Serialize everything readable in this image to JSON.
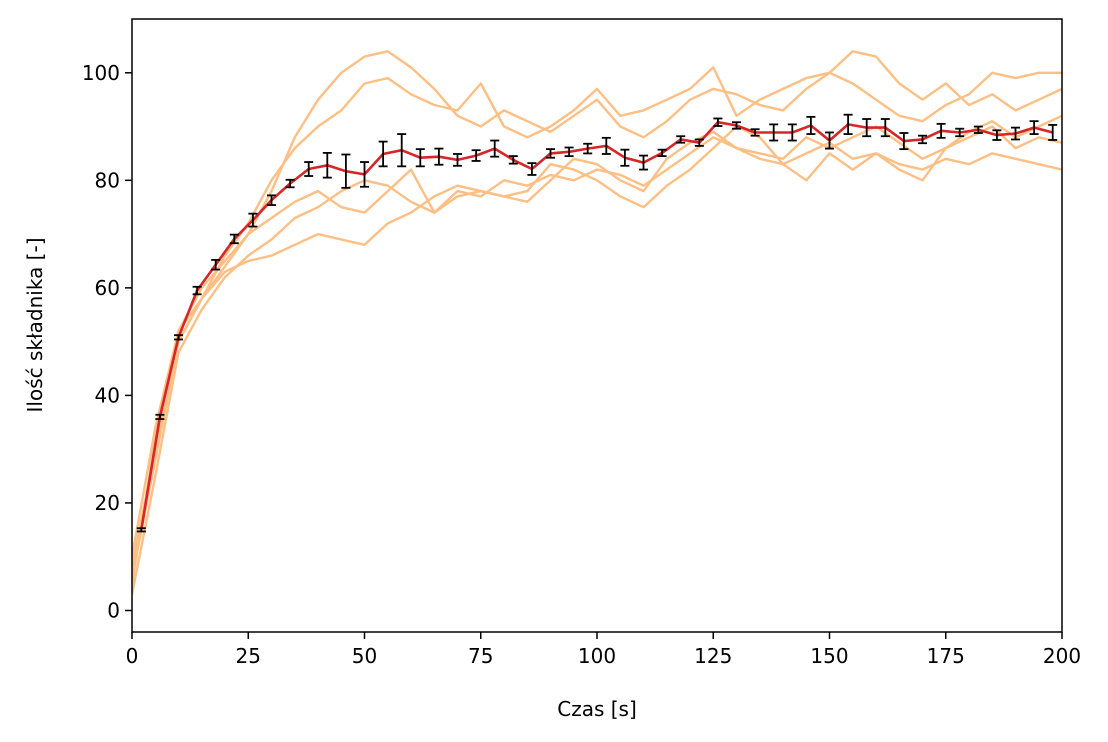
{
  "chart_data": {
    "type": "line",
    "title": "",
    "xlabel": "Czas [s]",
    "ylabel": "Ilość składnika [-]",
    "xlim": [
      0,
      200
    ],
    "ylim": [
      -4,
      110
    ],
    "xticks": [
      0,
      25,
      50,
      75,
      100,
      125,
      150,
      175,
      200
    ],
    "yticks": [
      0,
      20,
      40,
      60,
      80,
      100
    ],
    "grid": false,
    "legend": "none",
    "colors": {
      "realizations": "#fdbf84",
      "mean": "#d62728",
      "errorbar": "#000000"
    },
    "mean": {
      "x": [
        2,
        6,
        10,
        14,
        18,
        22,
        26,
        30,
        34,
        38,
        42,
        46,
        50,
        54,
        58,
        62,
        66,
        70,
        74,
        78,
        82,
        86,
        90,
        94,
        98,
        102,
        106,
        110,
        114,
        118,
        122,
        126,
        130,
        134,
        138,
        142,
        146,
        150,
        154,
        158,
        162,
        166,
        170,
        174,
        178,
        182,
        186,
        190,
        194,
        198
      ],
      "y": [
        15,
        36,
        50.8,
        59.5,
        64.3,
        69.1,
        72.6,
        76.3,
        79.4,
        82.1,
        82.8,
        81.7,
        81.1,
        84.9,
        85.6,
        84.2,
        84.4,
        83.8,
        84.6,
        85.9,
        83.8,
        82.1,
        85,
        85.3,
        85.9,
        86.4,
        84.2,
        83.3,
        85.1,
        87.6,
        87,
        90.8,
        90.2,
        88.9,
        88.9,
        88.9,
        90.2,
        87.4,
        90.4,
        89.8,
        89.8,
        87.3,
        87.6,
        89.2,
        88.9,
        89.4,
        88.4,
        88.7,
        89.8,
        88.9
      ],
      "err": [
        0.3,
        0.4,
        0.4,
        0.7,
        0.9,
        0.8,
        1.2,
        0.9,
        0.7,
        1.3,
        2.3,
        3.1,
        2.3,
        2.3,
        3.0,
        1.6,
        1.5,
        1.1,
        1.0,
        1.5,
        0.7,
        1.1,
        0.8,
        0.8,
        0.9,
        1.5,
        1.5,
        1.3,
        0.6,
        0.6,
        0.6,
        0.7,
        0.6,
        0.6,
        1.5,
        1.5,
        1.6,
        1.5,
        1.8,
        1.6,
        1.6,
        1.5,
        0.7,
        1.3,
        0.7,
        0.6,
        0.9,
        1.1,
        1.2,
        1.4
      ]
    },
    "realizations": [
      {
        "x": [
          0,
          5,
          10,
          15,
          20,
          25,
          30,
          35,
          40,
          45,
          50,
          55,
          60,
          65,
          70,
          75,
          80,
          85,
          90,
          95,
          100,
          105,
          110,
          115,
          120,
          125,
          130,
          135,
          140,
          145,
          150,
          155,
          160,
          165,
          170,
          175,
          180,
          185,
          190,
          195,
          200
        ],
        "y": [
          5,
          32,
          52,
          60,
          65,
          70,
          78,
          88,
          95,
          100,
          103,
          104,
          101,
          97,
          92,
          90,
          93,
          91,
          89,
          92,
          95,
          90,
          88,
          91,
          95,
          97,
          96,
          94,
          93,
          97,
          100,
          104,
          103,
          98,
          95,
          98,
          94,
          96,
          93,
          95,
          97
        ]
      },
      {
        "x": [
          0,
          5,
          10,
          15,
          20,
          25,
          30,
          35,
          40,
          45,
          50,
          55,
          60,
          65,
          70,
          75,
          80,
          85,
          90,
          95,
          100,
          105,
          110,
          115,
          120,
          125,
          130,
          135,
          140,
          145,
          150,
          155,
          160,
          165,
          170,
          175,
          180,
          185,
          190,
          195,
          200
        ],
        "y": [
          8,
          30,
          50,
          58,
          66,
          72,
          80,
          86,
          90,
          93,
          98,
          99,
          96,
          94,
          93,
          98,
          90,
          88,
          90,
          93,
          97,
          92,
          93,
          95,
          97,
          101,
          92,
          95,
          97,
          99,
          100,
          98,
          95,
          92,
          91,
          94,
          96,
          100,
          99,
          100,
          100
        ]
      },
      {
        "x": [
          0,
          5,
          10,
          15,
          20,
          25,
          30,
          35,
          40,
          45,
          50,
          55,
          60,
          65,
          70,
          75,
          80,
          85,
          90,
          95,
          100,
          105,
          110,
          115,
          120,
          125,
          130,
          135,
          140,
          145,
          150,
          155,
          160,
          165,
          170,
          175,
          180,
          185,
          190,
          195,
          200
        ],
        "y": [
          3,
          25,
          48,
          56,
          62,
          66,
          69,
          73,
          75,
          78,
          80,
          79,
          76,
          74,
          78,
          77,
          80,
          79,
          81,
          80,
          82,
          81,
          79,
          82,
          85,
          88,
          86,
          84,
          83,
          85,
          87,
          84,
          85,
          83,
          82,
          84,
          83,
          85,
          84,
          83,
          82
        ]
      },
      {
        "x": [
          0,
          5,
          10,
          15,
          20,
          25,
          30,
          35,
          40,
          45,
          50,
          55,
          60,
          65,
          70,
          75,
          80,
          85,
          90,
          95,
          100,
          105,
          110,
          115,
          120,
          125,
          130,
          135,
          140,
          145,
          150,
          155,
          160,
          165,
          170,
          175,
          180,
          185,
          190,
          195,
          200
        ],
        "y": [
          10,
          34,
          52,
          58,
          63,
          65,
          66,
          68,
          70,
          69,
          68,
          72,
          74,
          77,
          79,
          78,
          77,
          76,
          80,
          84,
          83,
          80,
          78,
          84,
          87,
          89,
          86,
          85,
          84,
          88,
          86,
          88,
          90,
          87,
          84,
          86,
          88,
          90,
          86,
          88,
          87
        ]
      },
      {
        "x": [
          0,
          5,
          10,
          15,
          20,
          25,
          30,
          35,
          40,
          45,
          50,
          55,
          60,
          65,
          70,
          75,
          80,
          85,
          90,
          95,
          100,
          105,
          110,
          115,
          120,
          125,
          130,
          135,
          140,
          145,
          150,
          155,
          160,
          165,
          170,
          175,
          180,
          185,
          190,
          195,
          200
        ],
        "y": [
          6,
          28,
          50,
          58,
          64,
          70,
          73,
          76,
          78,
          75,
          74,
          78,
          82,
          74,
          77,
          78,
          77,
          78,
          83,
          82,
          80,
          77,
          75,
          79,
          82,
          86,
          90,
          88,
          83,
          80,
          85,
          82,
          85,
          82,
          80,
          86,
          89,
          91,
          88,
          90,
          92
        ]
      }
    ]
  }
}
